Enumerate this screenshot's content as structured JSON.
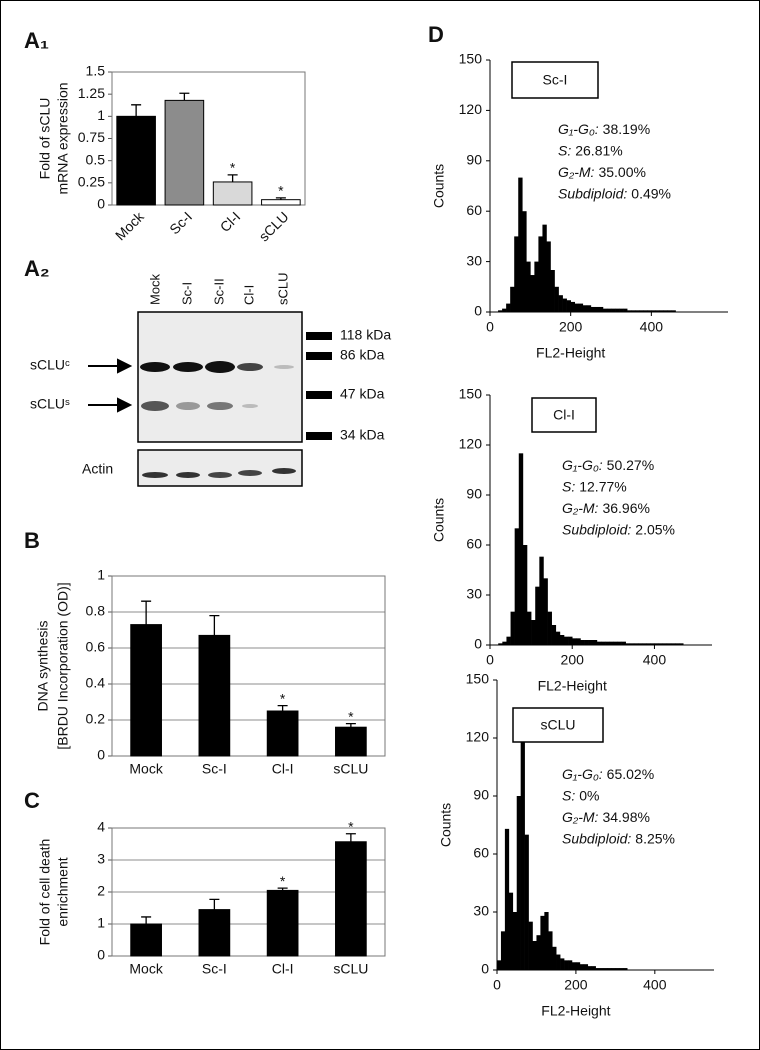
{
  "chart_data": [
    {
      "type": "bar",
      "panel": "A₁",
      "ylabel": [
        "Fold of sCLU",
        "mRNA expression"
      ],
      "categories": [
        "Mock",
        "Sc-I",
        "Cl-I",
        "sCLU"
      ],
      "values": [
        1.0,
        1.18,
        0.26,
        0.06
      ],
      "errors": [
        0.13,
        0.08,
        0.08,
        0.02
      ],
      "colors": [
        "#000000",
        "#8c8c8c",
        "#d9d9d9",
        "#ffffff"
      ],
      "annotations": [
        null,
        null,
        "*",
        "*"
      ],
      "ylim": [
        0,
        1.5
      ],
      "yticks": [
        0,
        0.25,
        0.5,
        0.75,
        1,
        1.25,
        1.5
      ],
      "grid": false
    },
    {
      "type": "bar",
      "panel": "B",
      "ylabel": [
        "DNA synthesis",
        "[BRDU Incorporation (OD)]"
      ],
      "categories": [
        "Mock",
        "Sc-I",
        "Cl-I",
        "sCLU"
      ],
      "values": [
        0.73,
        0.67,
        0.25,
        0.16
      ],
      "errors": [
        0.13,
        0.11,
        0.03,
        0.02
      ],
      "color": "#000000",
      "annotations": [
        null,
        null,
        "*",
        "*"
      ],
      "ylim": [
        0,
        1
      ],
      "yticks": [
        0,
        0.2,
        0.4,
        0.6,
        0.8,
        1
      ],
      "grid": true
    },
    {
      "type": "bar",
      "panel": "C",
      "ylabel": [
        "Fold of cell death",
        "enrichment"
      ],
      "categories": [
        "Mock",
        "Sc-I",
        "Cl-I",
        "sCLU"
      ],
      "values": [
        1.0,
        1.45,
        2.05,
        3.57
      ],
      "errors": [
        0.22,
        0.32,
        0.07,
        0.25
      ],
      "color": "#000000",
      "annotations": [
        null,
        null,
        "*",
        "*"
      ],
      "ylim": [
        0,
        4
      ],
      "yticks": [
        0,
        1,
        2,
        3,
        4
      ],
      "grid": true
    },
    {
      "type": "histogram",
      "panel": "D",
      "label": "Sc-I",
      "stats": [
        {
          "label": "G₁-G₀:",
          "value": "38.19%"
        },
        {
          "label": "S:",
          "value": "26.81%"
        },
        {
          "label": "G₂-M:",
          "value": "35.00%"
        },
        {
          "label": "Subdiploid:",
          "value": "0.49%"
        }
      ],
      "xlabel": "FL2-Height",
      "ylabel": "Counts",
      "bins": [
        0,
        10,
        20,
        30,
        40,
        50,
        60,
        70,
        80,
        90,
        100,
        110,
        120,
        130,
        140,
        150,
        160,
        170,
        180,
        190,
        200,
        210,
        220,
        230,
        240,
        250,
        260,
        270,
        280,
        290,
        300,
        310,
        320,
        330,
        340,
        350,
        360,
        370,
        380,
        390,
        400,
        410,
        420,
        430,
        440,
        450,
        460,
        470,
        480,
        490,
        500,
        510,
        520
      ],
      "values": [
        0,
        0,
        1,
        2,
        5,
        15,
        45,
        80,
        60,
        30,
        22,
        30,
        45,
        52,
        42,
        25,
        15,
        10,
        8,
        7,
        6,
        5,
        5,
        4,
        4,
        3,
        3,
        3,
        2,
        2,
        2,
        2,
        2,
        2,
        1,
        1,
        1,
        1,
        1,
        1,
        1,
        1,
        1,
        1,
        1,
        1,
        0,
        0,
        0,
        0,
        0,
        0
      ],
      "color": "#000000",
      "xlim": [
        0,
        590
      ],
      "xticks": [
        0,
        200,
        400
      ],
      "ylim": [
        0,
        150
      ],
      "yticks": [
        0,
        30,
        60,
        90,
        120,
        150
      ]
    },
    {
      "type": "histogram",
      "label": "Cl-I",
      "stats": [
        {
          "label": "G₁-G₀:",
          "value": "50.27%"
        },
        {
          "label": "S:",
          "value": "12.77%"
        },
        {
          "label": "G₂-M:",
          "value": "36.96%"
        },
        {
          "label": "Subdiploid:",
          "value": "2.05%"
        }
      ],
      "xlabel": "FL2-Height",
      "ylabel": "Counts",
      "bins": [
        0,
        10,
        20,
        30,
        40,
        50,
        60,
        70,
        80,
        90,
        100,
        110,
        120,
        130,
        140,
        150,
        160,
        170,
        180,
        190,
        200,
        210,
        220,
        230,
        240,
        250,
        260,
        270,
        280,
        290,
        300,
        310,
        320,
        330,
        340,
        350,
        360,
        370,
        380,
        390,
        400,
        410,
        420,
        430,
        440,
        450,
        460,
        470,
        480,
        490,
        500,
        510,
        520
      ],
      "values": [
        0,
        0,
        1,
        2,
        5,
        20,
        70,
        115,
        60,
        20,
        15,
        35,
        53,
        40,
        20,
        12,
        8,
        6,
        5,
        5,
        4,
        4,
        3,
        3,
        3,
        3,
        2,
        2,
        2,
        2,
        2,
        2,
        2,
        1,
        1,
        1,
        1,
        1,
        1,
        1,
        1,
        1,
        1,
        1,
        1,
        1,
        1,
        0,
        0,
        0,
        0,
        0
      ],
      "color": "#000000",
      "xlim": [
        0,
        540
      ],
      "xticks": [
        0,
        200,
        400
      ],
      "ylim": [
        0,
        150
      ],
      "yticks": [
        0,
        30,
        60,
        90,
        120,
        150
      ]
    },
    {
      "type": "histogram",
      "label": "sCLU",
      "stats": [
        {
          "label": "G₁-G₀:",
          "value": "65.02%"
        },
        {
          "label": "S:",
          "value": "0%"
        },
        {
          "label": "G₂-M:",
          "value": "34.98%"
        },
        {
          "label": "Subdiploid:",
          "value": "8.25%"
        }
      ],
      "xlabel": "FL2-Height",
      "ylabel": "Counts",
      "bins": [
        0,
        10,
        20,
        30,
        40,
        50,
        60,
        70,
        80,
        90,
        100,
        110,
        120,
        130,
        140,
        150,
        160,
        170,
        180,
        190,
        200,
        210,
        220,
        230,
        240,
        250,
        260,
        270,
        280,
        290,
        300,
        310,
        320,
        330,
        340,
        350,
        360,
        370,
        380,
        390,
        400,
        410,
        420,
        430,
        440,
        450,
        460,
        470,
        480,
        490,
        500,
        510,
        520
      ],
      "values": [
        5,
        20,
        73,
        40,
        30,
        90,
        133,
        70,
        25,
        15,
        18,
        28,
        30,
        20,
        12,
        8,
        6,
        5,
        5,
        4,
        4,
        3,
        3,
        2,
        2,
        1,
        1,
        1,
        1,
        1,
        1,
        1,
        1,
        0,
        0,
        0,
        0,
        0,
        0,
        0,
        0,
        0,
        0,
        0,
        0,
        0,
        0,
        0,
        0,
        0,
        0,
        0
      ],
      "color": "#000000",
      "xlim": [
        0,
        550
      ],
      "xticks": [
        0,
        200,
        400
      ],
      "ylim": [
        0,
        150
      ],
      "yticks": [
        0,
        30,
        60,
        90,
        120,
        150
      ]
    }
  ],
  "blot": {
    "panel": "A₂",
    "lanes": [
      "Mock",
      "Sc-I",
      "Sc-II",
      "Cl-I",
      "sCLU"
    ],
    "bands": [
      "sCLUᶜ",
      "sCLUˢ"
    ],
    "loading_control": "Actin",
    "markers": [
      "118 kDa",
      "86 kDa",
      "47 kDa",
      "34 kDa"
    ]
  }
}
